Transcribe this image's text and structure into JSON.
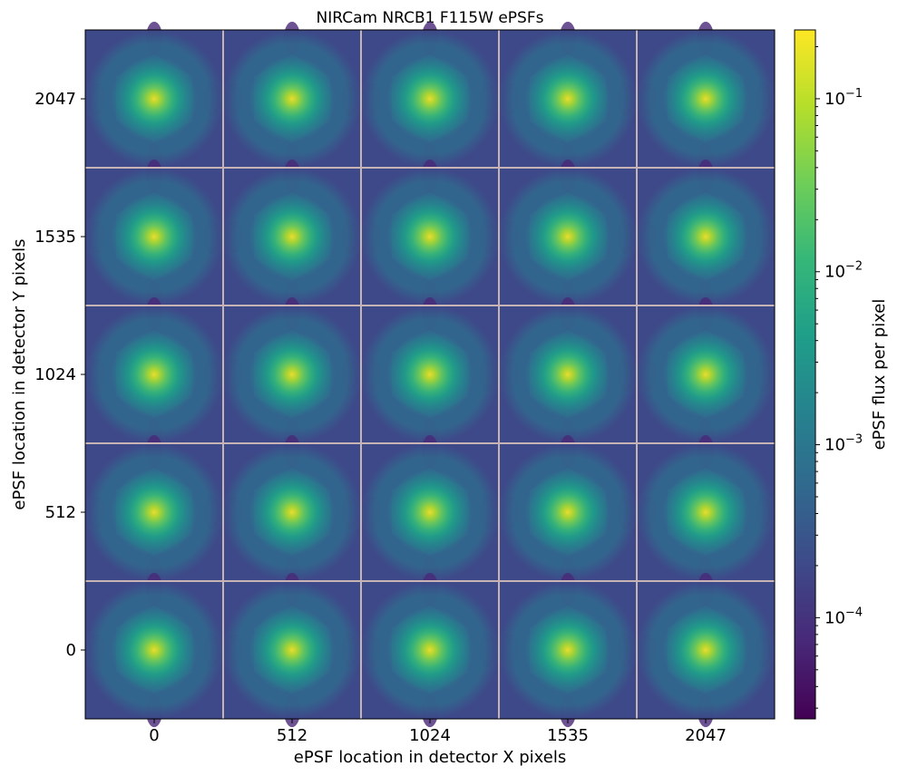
{
  "chart_data": {
    "type": "heatmap",
    "title": "NIRCam NRCB1 F115W ePSFs",
    "xlabel": "ePSF location in detector X pixels",
    "ylabel": "ePSF location in detector Y pixels",
    "x_ticks": [
      "0",
      "512",
      "1024",
      "1535",
      "2047"
    ],
    "y_ticks": [
      "2047",
      "1535",
      "1024",
      "512",
      "0"
    ],
    "grid": "5x5 ePSF tiles",
    "colorscale": "viridis",
    "colorbar": {
      "label": "ePSF flux per pixel",
      "scale": "log",
      "range": [
        2.6e-05,
        0.25
      ],
      "ticks": [
        {
          "base": "10",
          "exp": "−1",
          "value": 0.1
        },
        {
          "base": "10",
          "exp": "−2",
          "value": 0.01
        },
        {
          "base": "10",
          "exp": "−3",
          "value": 0.001
        },
        {
          "base": "10",
          "exp": "−4",
          "value": 0.0001
        }
      ]
    },
    "peak_flux_per_pixel": 0.22,
    "background_flux_per_pixel": 0.0002,
    "colors": {
      "viridis": [
        "#440154",
        "#482878",
        "#3e4989",
        "#31688e",
        "#26828e",
        "#1f9e89",
        "#35b779",
        "#6ece58",
        "#b5de2b",
        "#fde725"
      ],
      "divider": "#c8b4b4"
    }
  }
}
